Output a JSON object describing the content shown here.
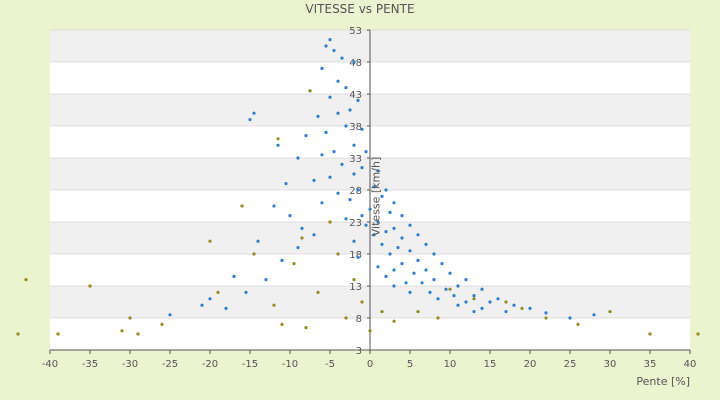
{
  "chart_data": {
    "type": "scatter",
    "title": "VITESSE vs PENTE",
    "xlabel": "Pente [%]",
    "ylabel": "Vitesse [km/h]",
    "xlim": [
      -40,
      40
    ],
    "ylim": [
      3,
      53
    ],
    "x_ticks": [
      -40,
      -35,
      -30,
      -25,
      -20,
      -15,
      -10,
      -5,
      0,
      5,
      10,
      15,
      20,
      25,
      30,
      35,
      40
    ],
    "y_ticks": [
      3,
      8,
      13,
      18,
      23,
      28,
      33,
      38,
      43,
      48,
      53
    ],
    "grid": "horizontal bands",
    "legend": "none",
    "colors": {
      "background": "#ecf3cf",
      "plot_band_light": "#ffffff",
      "plot_band_dark": "#f0f0f0",
      "series_blue": "#2f7fd0",
      "series_olive": "#8f8f1f"
    },
    "series": [
      {
        "color": "#2f7fd0",
        "points": [
          [
            -5.5,
            50.5
          ],
          [
            -5.0,
            51.5
          ],
          [
            -4.5,
            49.8
          ],
          [
            -3.5,
            48.6
          ],
          [
            -2.0,
            48.0
          ],
          [
            -6.0,
            47.0
          ],
          [
            -4.0,
            45.0
          ],
          [
            -3.0,
            44.0
          ],
          [
            -7.5,
            43.5
          ],
          [
            -5.0,
            42.5
          ],
          [
            -1.5,
            42.0
          ],
          [
            -2.5,
            40.5
          ],
          [
            -4.0,
            40.0
          ],
          [
            -6.5,
            39.5
          ],
          [
            -14.5,
            40.0
          ],
          [
            -15.0,
            39.0
          ],
          [
            -3.0,
            38.0
          ],
          [
            -1.0,
            37.5
          ],
          [
            -5.5,
            37.0
          ],
          [
            -8.0,
            36.5
          ],
          [
            -11.5,
            35.0
          ],
          [
            -2.0,
            35.0
          ],
          [
            -4.5,
            34.0
          ],
          [
            -0.5,
            34.0
          ],
          [
            -6.0,
            33.5
          ],
          [
            -9.0,
            33.0
          ],
          [
            -3.5,
            32.0
          ],
          [
            -1.0,
            31.5
          ],
          [
            1.0,
            31.0
          ],
          [
            -2.0,
            30.5
          ],
          [
            -5.0,
            30.0
          ],
          [
            -7.0,
            29.5
          ],
          [
            -10.5,
            29.0
          ],
          [
            0.5,
            28.5
          ],
          [
            2.0,
            28.0
          ],
          [
            -1.5,
            28.0
          ],
          [
            -4.0,
            27.5
          ],
          [
            1.5,
            27.0
          ],
          [
            -2.5,
            26.5
          ],
          [
            3.0,
            26.0
          ],
          [
            -6.0,
            26.0
          ],
          [
            -12.0,
            25.5
          ],
          [
            0.0,
            25.0
          ],
          [
            2.5,
            24.5
          ],
          [
            -1.0,
            24.0
          ],
          [
            4.0,
            24.0
          ],
          [
            -3.0,
            23.5
          ],
          [
            1.0,
            23.0
          ],
          [
            5.0,
            22.5
          ],
          [
            -0.5,
            22.5
          ],
          [
            3.0,
            22.0
          ],
          [
            -8.5,
            22.0
          ],
          [
            2.0,
            21.5
          ],
          [
            6.0,
            21.0
          ],
          [
            0.5,
            21.0
          ],
          [
            4.0,
            20.5
          ],
          [
            -2.0,
            20.0
          ],
          [
            7.0,
            19.5
          ],
          [
            1.5,
            19.5
          ],
          [
            3.5,
            19.0
          ],
          [
            5.0,
            18.5
          ],
          [
            8.0,
            18.0
          ],
          [
            2.5,
            18.0
          ],
          [
            -1.5,
            17.5
          ],
          [
            6.0,
            17.0
          ],
          [
            4.0,
            16.5
          ],
          [
            9.0,
            16.5
          ],
          [
            1.0,
            16.0
          ],
          [
            7.0,
            15.5
          ],
          [
            3.0,
            15.5
          ],
          [
            10.0,
            15.0
          ],
          [
            5.5,
            15.0
          ],
          [
            2.0,
            14.5
          ],
          [
            8.0,
            14.0
          ],
          [
            12.0,
            14.0
          ],
          [
            4.5,
            13.5
          ],
          [
            6.5,
            13.5
          ],
          [
            11.0,
            13.0
          ],
          [
            3.0,
            13.0
          ],
          [
            9.5,
            12.5
          ],
          [
            14.0,
            12.5
          ],
          [
            7.5,
            12.0
          ],
          [
            5.0,
            12.0
          ],
          [
            13.0,
            11.5
          ],
          [
            10.5,
            11.5
          ],
          [
            16.0,
            11.0
          ],
          [
            8.5,
            11.0
          ],
          [
            12.0,
            10.5
          ],
          [
            15.0,
            10.5
          ],
          [
            18.0,
            10.0
          ],
          [
            11.0,
            10.0
          ],
          [
            14.0,
            9.5
          ],
          [
            20.0,
            9.5
          ],
          [
            17.0,
            9.0
          ],
          [
            22.0,
            8.8
          ],
          [
            13.0,
            9.0
          ],
          [
            25.0,
            8.0
          ],
          [
            28.0,
            8.5
          ],
          [
            -20.0,
            11.0
          ],
          [
            -21.0,
            10.0
          ],
          [
            -25.0,
            8.5
          ],
          [
            -18.0,
            9.5
          ],
          [
            -15.5,
            12.0
          ],
          [
            -13.0,
            14.0
          ],
          [
            -17.0,
            14.5
          ],
          [
            -11.0,
            17.0
          ],
          [
            -9.0,
            19.0
          ],
          [
            -14.0,
            20.0
          ],
          [
            -7.0,
            21.0
          ],
          [
            -10.0,
            24.0
          ]
        ]
      },
      {
        "color": "#8f8f1f",
        "points": [
          [
            -43.0,
            14.0
          ],
          [
            -44.0,
            5.5
          ],
          [
            -39.0,
            5.5
          ],
          [
            -35.0,
            13.0
          ],
          [
            -30.0,
            8.0
          ],
          [
            -31.0,
            6.0
          ],
          [
            -29.0,
            5.5
          ],
          [
            -26.0,
            7.0
          ],
          [
            -20.0,
            20.0
          ],
          [
            -19.0,
            12.0
          ],
          [
            -16.0,
            25.5
          ],
          [
            -14.5,
            18.0
          ],
          [
            -12.0,
            10.0
          ],
          [
            -11.0,
            7.0
          ],
          [
            -9.5,
            16.5
          ],
          [
            -8.5,
            20.5
          ],
          [
            -8.0,
            6.5
          ],
          [
            -6.5,
            12.0
          ],
          [
            -5.0,
            23.0
          ],
          [
            -4.0,
            18.0
          ],
          [
            -3.0,
            8.0
          ],
          [
            -2.0,
            14.0
          ],
          [
            -1.0,
            10.5
          ],
          [
            0.0,
            6.0
          ],
          [
            1.5,
            9.0
          ],
          [
            3.0,
            7.5
          ],
          [
            6.0,
            9.0
          ],
          [
            8.5,
            8.0
          ],
          [
            10.0,
            12.5
          ],
          [
            13.0,
            11.0
          ],
          [
            17.0,
            10.5
          ],
          [
            19.0,
            9.5
          ],
          [
            22.0,
            8.0
          ],
          [
            26.0,
            7.0
          ],
          [
            30.0,
            9.0
          ],
          [
            35.0,
            5.5
          ],
          [
            41.0,
            5.5
          ],
          [
            -7.5,
            43.5
          ],
          [
            -11.5,
            36.0
          ]
        ]
      }
    ]
  }
}
